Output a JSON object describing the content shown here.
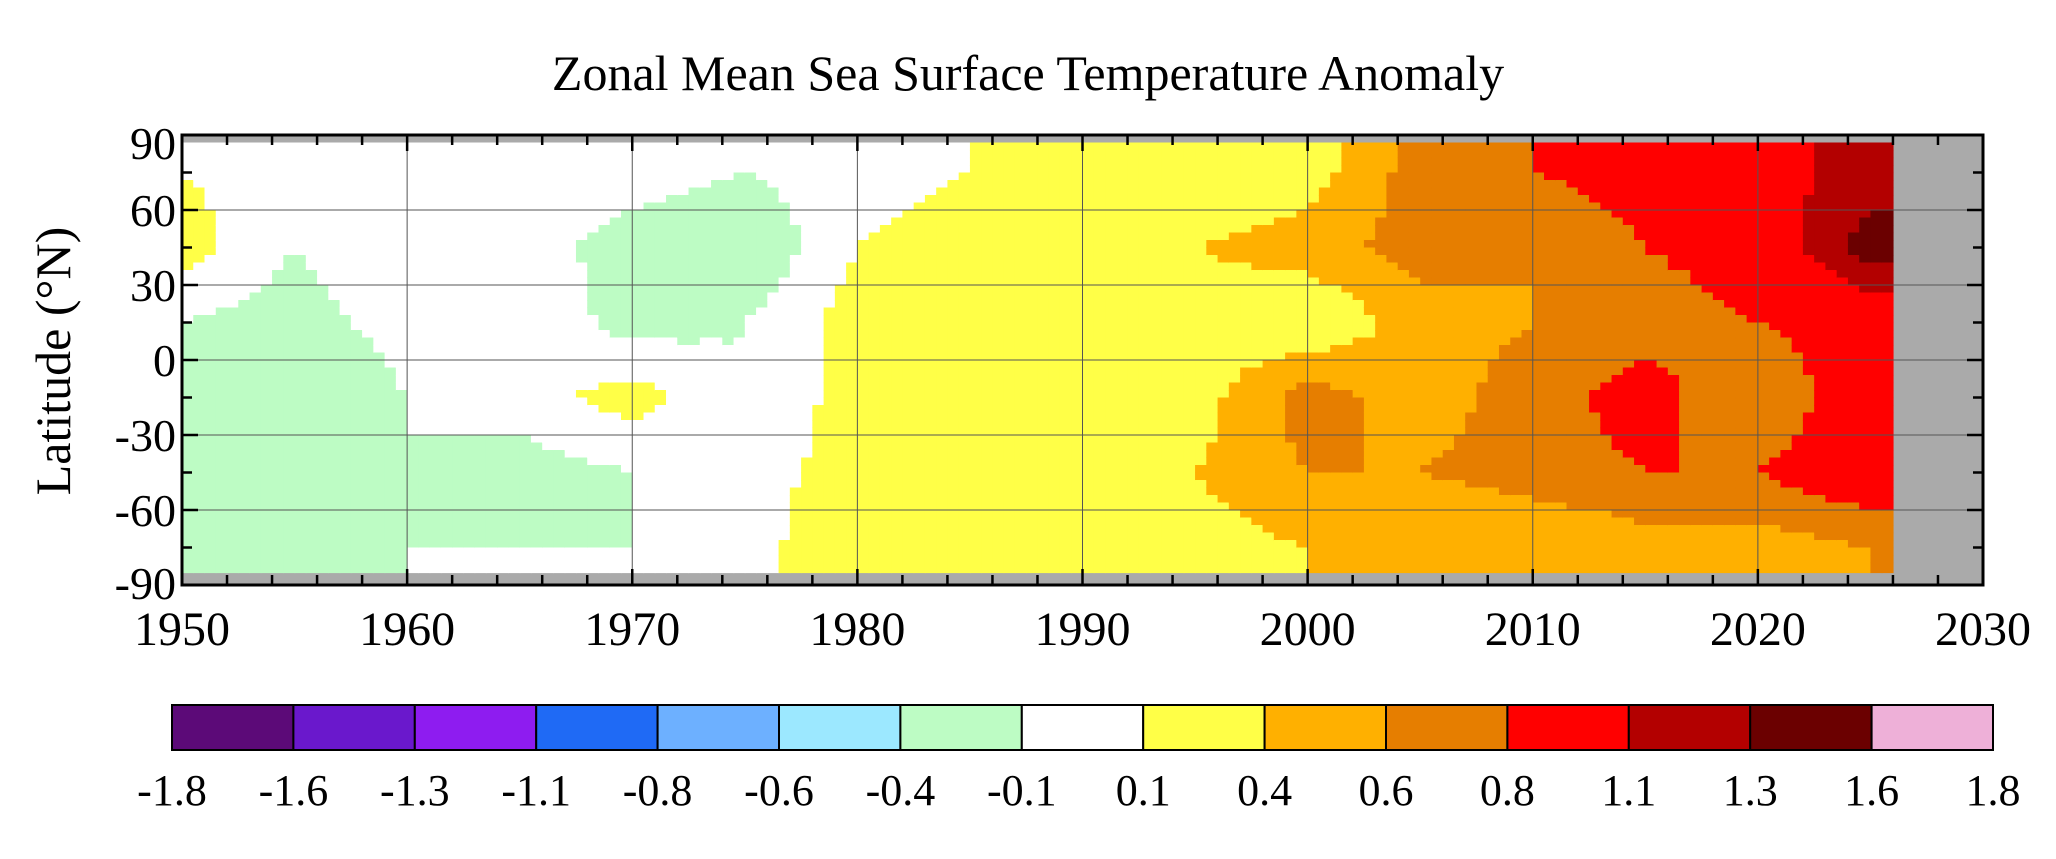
{
  "chart_data": {
    "type": "heatmap",
    "title": "Zonal Mean Sea Surface Temperature Anomaly",
    "xlabel": "",
    "ylabel": "Latitude (°N)",
    "xlim": [
      1950,
      2030
    ],
    "ylim": [
      -90,
      90
    ],
    "x_ticks": [
      "1950",
      "1960",
      "1970",
      "1980",
      "1990",
      "2000",
      "2010",
      "2020",
      "2030"
    ],
    "y_ticks": [
      "90",
      "60",
      "30",
      "0",
      "-30",
      "-60",
      "-90"
    ],
    "grid": true,
    "data_extent": {
      "x": [
        1950,
        2026
      ],
      "y": [
        -85,
        87
      ]
    },
    "colorbar": {
      "placement": "bottom",
      "boundaries": [
        "-1.8",
        "-1.6",
        "-1.3",
        "-1.1",
        "-0.8",
        "-0.6",
        "-0.4",
        "-0.1",
        "0.1",
        "0.4",
        "0.6",
        "0.8",
        "1.1",
        "1.3",
        "1.6",
        "1.8"
      ],
      "colors": [
        "#5c0a78",
        "#6a18cc",
        "#8e1cf0",
        "#1f6af5",
        "#6db0ff",
        "#9ce8ff",
        "#bdfcc4",
        "#ffffff",
        "#ffff47",
        "#ffb000",
        "#e67e00",
        "#ff0000",
        "#b30000",
        "#6b0000",
        "#eeb0d8"
      ]
    },
    "no_data_color": "#aaaaaa",
    "anomaly_grid": {
      "years": [
        1950,
        1955,
        1960,
        1965,
        1970,
        1975,
        1980,
        1985,
        1990,
        1995,
        2000,
        2005,
        2010,
        2015,
        2020,
        2025
      ],
      "latitudes": [
        75,
        45,
        15,
        -15,
        -45,
        -75
      ],
      "values": [
        [
          0.1,
          0.0,
          0.0,
          0.1,
          0.0,
          -0.1,
          0.0,
          0.1,
          0.1,
          0.2,
          0.3,
          0.7,
          0.8,
          0.9,
          1.0,
          1.2
        ],
        [
          0.2,
          -0.1,
          0.1,
          0.0,
          -0.2,
          -0.3,
          0.1,
          0.2,
          0.3,
          0.4,
          0.5,
          0.7,
          0.6,
          0.8,
          0.9,
          1.4
        ],
        [
          -0.1,
          -0.2,
          0.0,
          0.1,
          -0.2,
          -0.1,
          0.2,
          0.3,
          0.3,
          0.3,
          0.2,
          0.5,
          0.6,
          0.7,
          0.8,
          0.9
        ],
        [
          -0.2,
          -0.4,
          -0.1,
          0.0,
          0.2,
          -0.1,
          0.2,
          0.4,
          0.4,
          0.3,
          0.7,
          0.5,
          0.7,
          0.9,
          0.6,
          1.0
        ],
        [
          -0.2,
          -0.2,
          -0.1,
          -0.2,
          -0.1,
          0.0,
          0.2,
          0.3,
          0.3,
          0.4,
          0.6,
          0.6,
          0.7,
          0.8,
          0.8,
          1.0
        ],
        [
          -0.3,
          -0.2,
          -0.1,
          -0.1,
          -0.1,
          0.0,
          0.3,
          0.3,
          0.2,
          0.3,
          0.4,
          0.4,
          0.4,
          0.5,
          0.5,
          0.6
        ]
      ]
    }
  }
}
